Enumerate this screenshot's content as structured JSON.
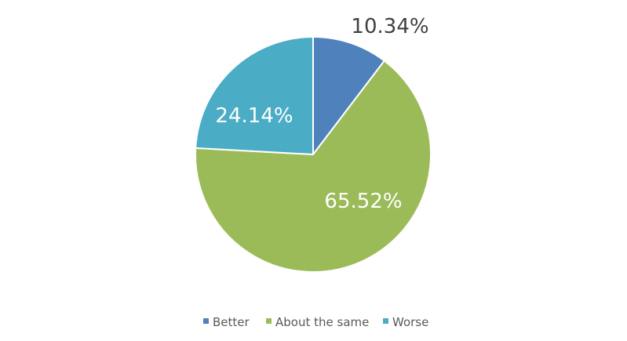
{
  "chart_data": {
    "type": "pie",
    "title": "",
    "start_angle": "top",
    "direction": "clockwise",
    "categories": [
      "Better",
      "About the same",
      "Worse"
    ],
    "values": [
      10.34,
      65.52,
      24.14
    ],
    "labels": [
      "10.34%",
      "65.52%",
      "24.14%"
    ],
    "colors": [
      "#4F81BD",
      "#9BBB59",
      "#4BACC6"
    ],
    "label_colors": [
      "#404040",
      "#FFFFFF",
      "#FFFFFF"
    ],
    "legend_position": "bottom"
  }
}
